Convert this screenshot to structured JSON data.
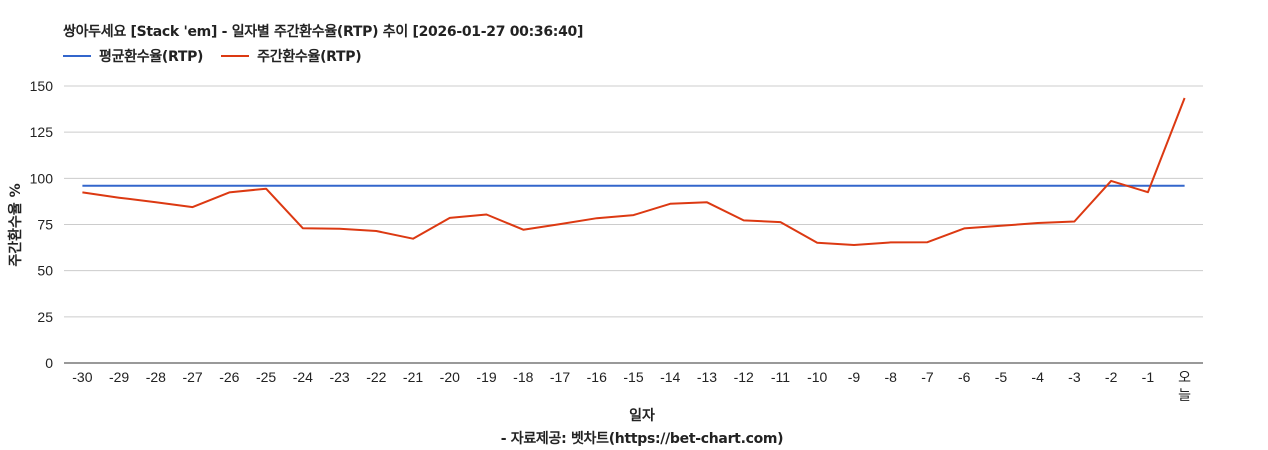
{
  "title": "쌍아두세요 [Stack 'em] - 일자별 주간환수율(RTP) 추이 [2026-01-27 00:36:40]",
  "legend": [
    {
      "label": "평균환수율(RTP)",
      "color": "#3366cc"
    },
    {
      "label": "주간환수율(RTP)",
      "color": "#dc3912"
    }
  ],
  "axes": {
    "ylabel": "주간환수율 %",
    "xlabel": "일자"
  },
  "source": "- 자료제공: 벳차트(https://bet-chart.com)",
  "chart_data": {
    "type": "line",
    "title": "쌍아두세요 [Stack 'em] - 일자별 주간환수율(RTP) 추이 [2026-01-27 00:36:40]",
    "xlabel": "일자",
    "ylabel": "주간환수율 %",
    "ylim": [
      0,
      150
    ],
    "yticks": [
      0,
      25,
      50,
      75,
      100,
      125,
      150
    ],
    "grid": true,
    "legend_position": "top",
    "categories": [
      "-30",
      "-29",
      "-28",
      "-27",
      "-26",
      "-25",
      "-24",
      "-23",
      "-22",
      "-21",
      "-20",
      "-19",
      "-18",
      "-17",
      "-16",
      "-15",
      "-14",
      "-13",
      "-12",
      "-11",
      "-10",
      "-9",
      "-8",
      "-7",
      "-6",
      "-5",
      "-4",
      "-3",
      "-2",
      "-1",
      "오늘"
    ],
    "series": [
      {
        "name": "평균환수율(RTP)",
        "color": "#3366cc",
        "values": [
          96,
          96,
          96,
          96,
          96,
          96,
          96,
          96,
          96,
          96,
          96,
          96,
          96,
          96,
          96,
          96,
          96,
          96,
          96,
          96,
          96,
          96,
          96,
          96,
          96,
          96,
          96,
          96,
          96,
          96,
          96
        ]
      },
      {
        "name": "주간환수율(RTP)",
        "color": "#dc3912",
        "values": [
          92.4,
          89.5,
          87.1,
          84.4,
          92.4,
          94.4,
          73.0,
          72.7,
          71.5,
          67.3,
          78.6,
          80.4,
          72.2,
          75.2,
          78.4,
          80.1,
          86.2,
          87.0,
          77.2,
          76.3,
          65.1,
          63.9,
          65.3,
          65.4,
          72.9,
          74.3,
          75.8,
          76.6,
          98.6,
          92.5,
          143.5
        ]
      }
    ]
  }
}
